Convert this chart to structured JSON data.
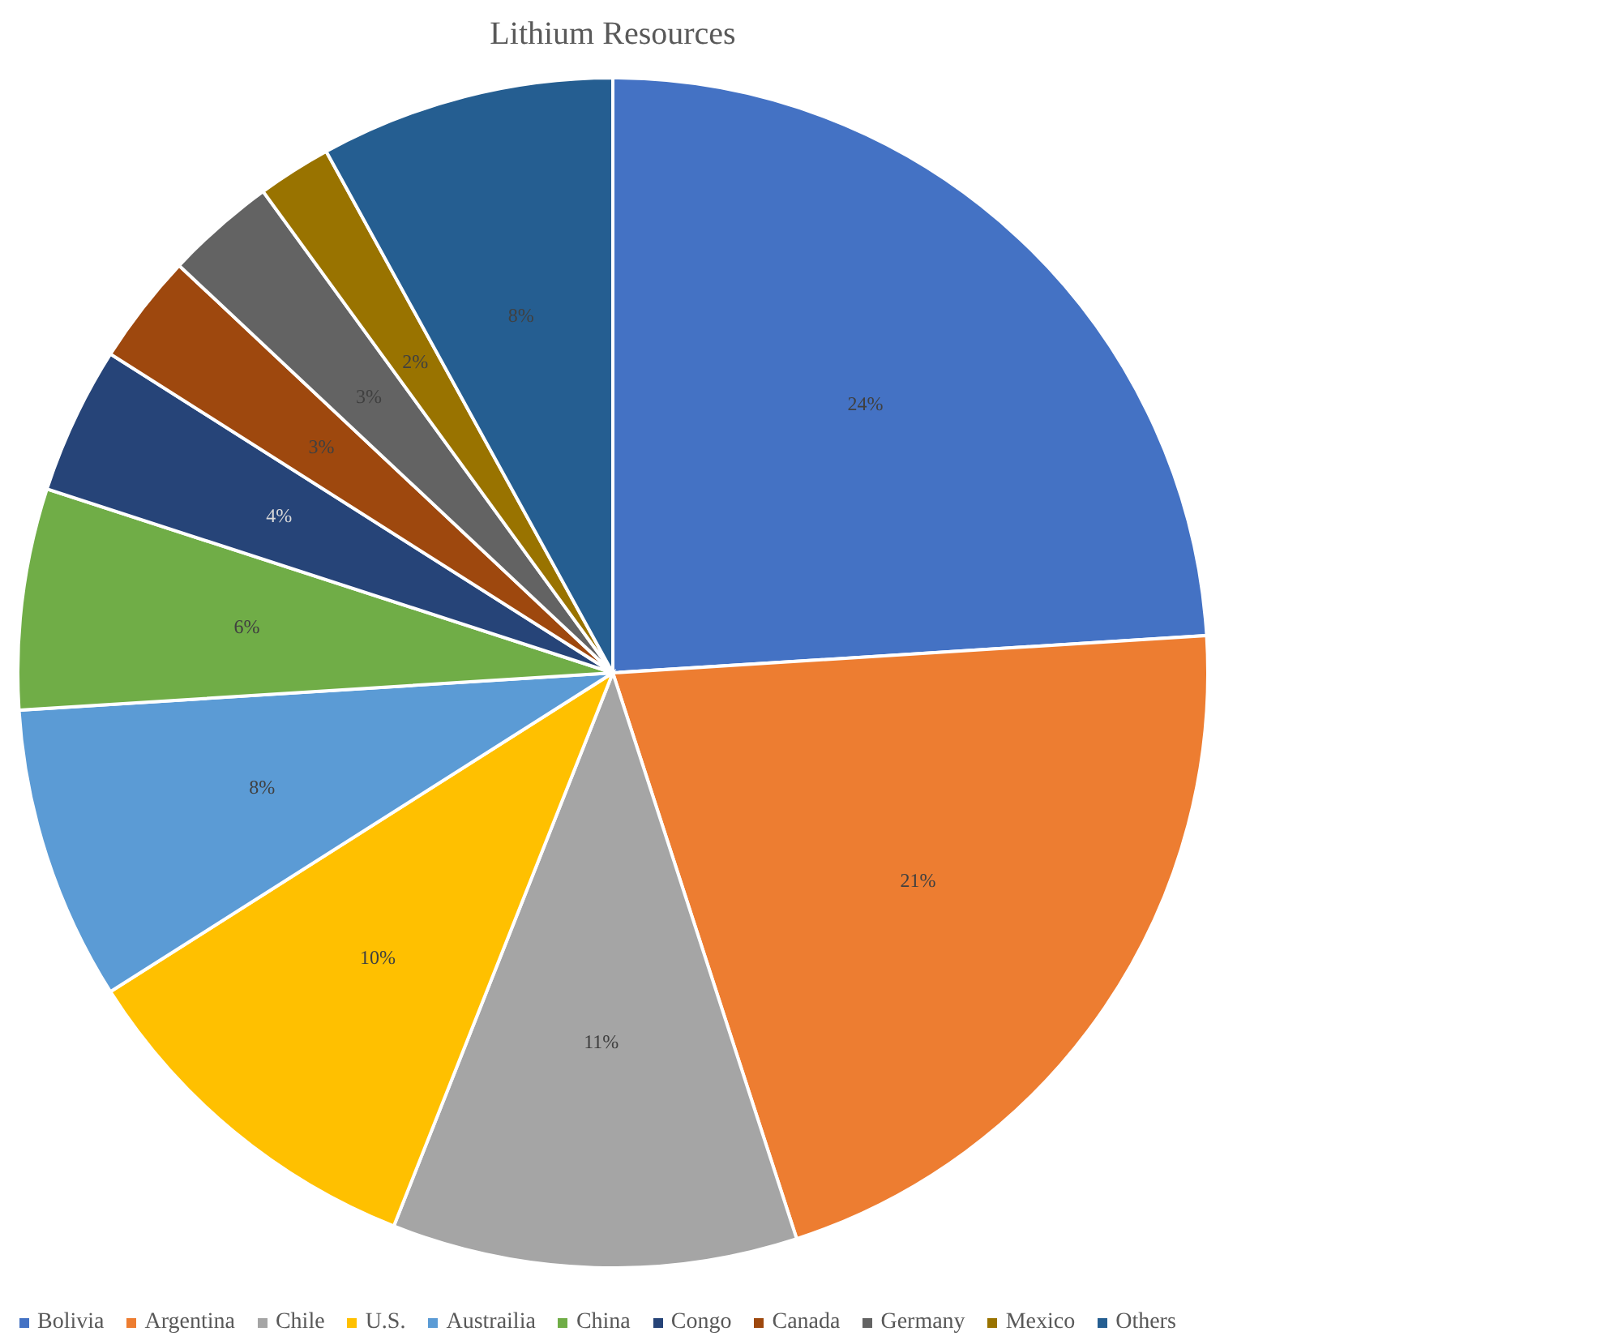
{
  "chart_data": {
    "type": "pie",
    "title": "Lithium Resources",
    "categories": [
      "Bolivia",
      "Argentina",
      "Chile",
      "U.S.",
      "Austrailia",
      "China",
      "Congo",
      "Canada",
      "Germany",
      "Mexico",
      "Others"
    ],
    "values": [
      24,
      21,
      11,
      10,
      8,
      6,
      4,
      3,
      3,
      2,
      8
    ],
    "colors": [
      "#4472c4",
      "#ed7d31",
      "#a5a5a5",
      "#ffc000",
      "#5b9bd5",
      "#70ad47",
      "#264478",
      "#9e480e",
      "#636363",
      "#997300",
      "#255e91"
    ],
    "value_labels": [
      "24%",
      "21%",
      "11%",
      "10%",
      "8%",
      "6%",
      "4%",
      "3%",
      "3%",
      "2%",
      "8%"
    ],
    "legend": "bottom"
  }
}
